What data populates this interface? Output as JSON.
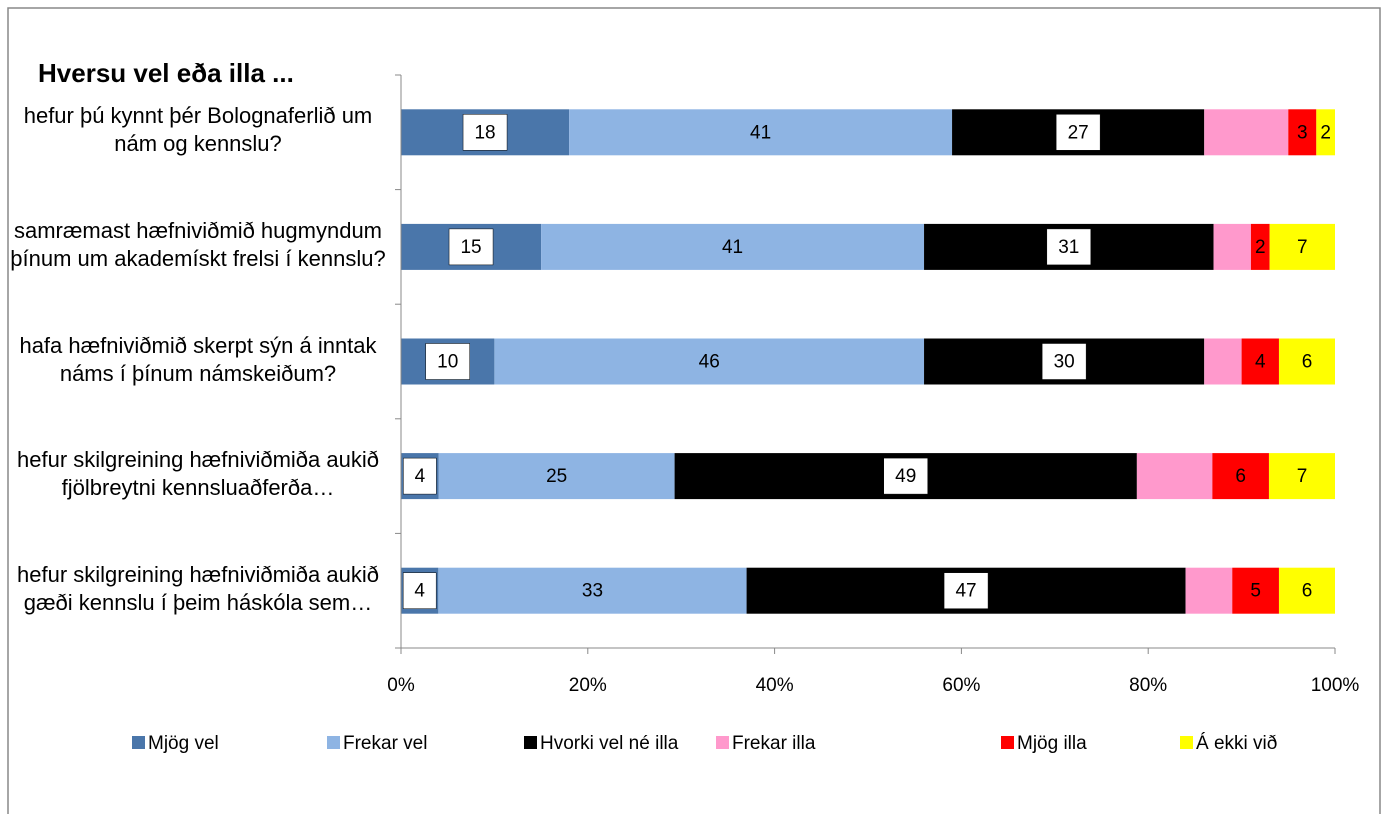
{
  "chart_data": {
    "type": "stacked_bar_horizontal_percent",
    "title": "Hversu vel eða illa ...",
    "categories": [
      "hefur þú kynnt þér Bolognaferlið um nám og kennslu?",
      "samræmast hæfniviðmið hugmyndum þínum um akademískt frelsi í kennslu?",
      "hafa hæfniviðmið skerpt sýn á inntak náms í þínum námskeiðum?",
      "hefur skilgreining hæfniviðmiða aukið fjölbreytni kennsluaðferða…",
      "hefur skilgreining hæfniviðmiða aukið gæði kennslu í þeim háskóla sem…"
    ],
    "series": [
      {
        "name": "Mjög vel",
        "color": "#4a76aa",
        "values": [
          18,
          15,
          10,
          4,
          4
        ],
        "show_labels": true,
        "label_box": true
      },
      {
        "name": "Frekar vel",
        "color": "#8eb4e3",
        "values": [
          41,
          41,
          46,
          25,
          33
        ],
        "show_labels": true,
        "label_box": false
      },
      {
        "name": "Hvorki vel né illa",
        "color": "#000000",
        "values": [
          27,
          31,
          30,
          49,
          47
        ],
        "show_labels": true,
        "label_box": true
      },
      {
        "name": "Frekar illa",
        "color": "#ff99cc",
        "values": [
          9,
          4,
          4,
          8,
          5
        ],
        "show_labels": false,
        "label_box": false
      },
      {
        "name": "Mjög illa",
        "color": "#ff0000",
        "values": [
          3,
          2,
          4,
          6,
          5
        ],
        "show_labels": true,
        "label_box": false
      },
      {
        "name": "Á ekki við",
        "color": "#ffff00",
        "values": [
          2,
          7,
          6,
          7,
          6
        ],
        "show_labels": true,
        "label_box": false
      }
    ],
    "xlim": [
      0,
      100
    ],
    "xticks": [
      {
        "value": 0,
        "label": "0%"
      },
      {
        "value": 20,
        "label": "20%"
      },
      {
        "value": 40,
        "label": "40%"
      },
      {
        "value": 60,
        "label": "60%"
      },
      {
        "value": 80,
        "label": "80%"
      },
      {
        "value": 100,
        "label": "100%"
      }
    ],
    "legend": "bottom"
  }
}
